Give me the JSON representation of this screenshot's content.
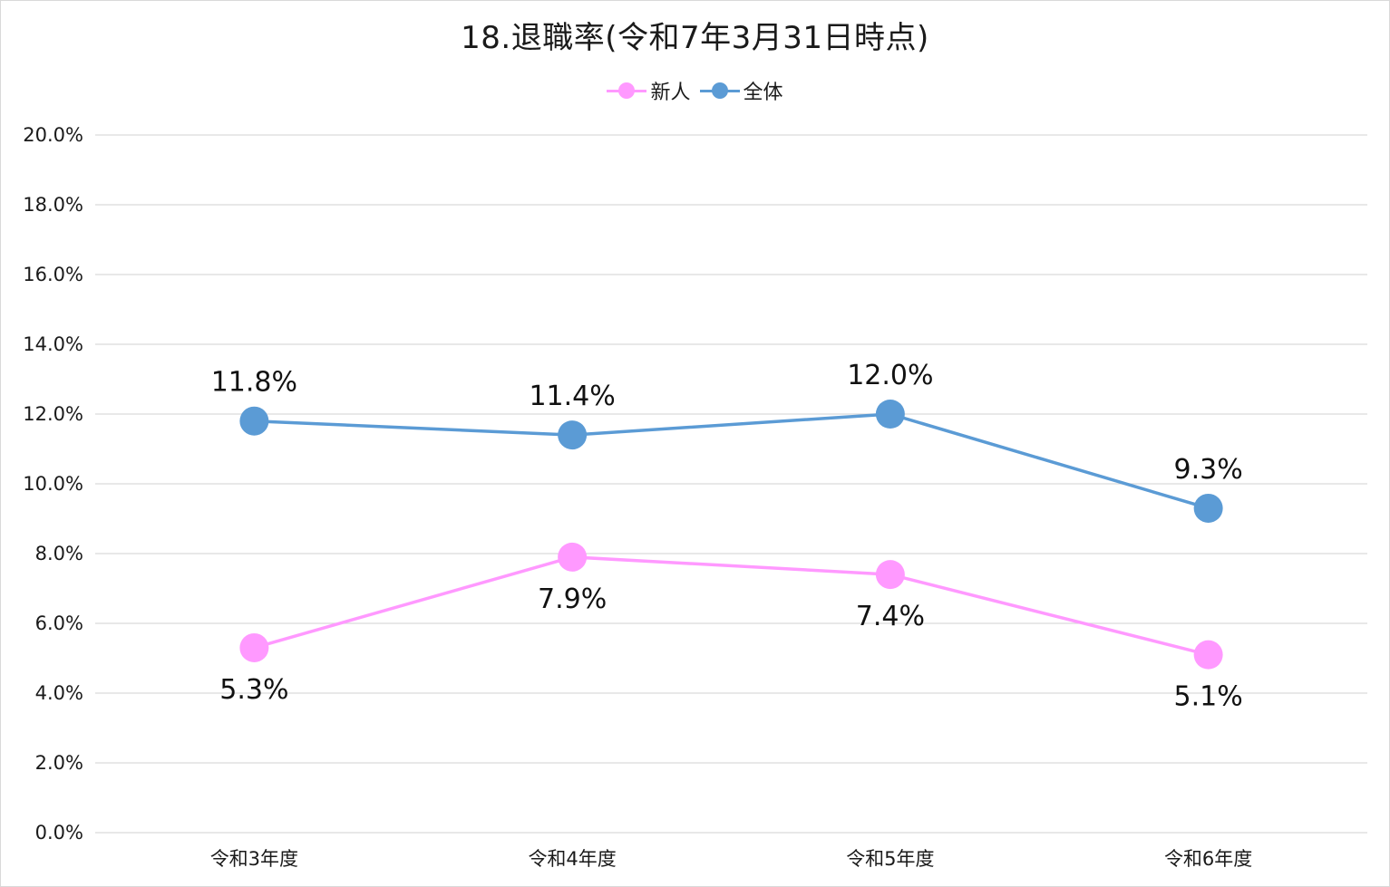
{
  "chart_data": {
    "type": "line",
    "title": "18.退職率(令和7年3月31日時点)",
    "categories": [
      "令和3年度",
      "令和4年度",
      "令和5年度",
      "令和6年度"
    ],
    "series": [
      {
        "name": "新人",
        "color": "#ff99ff",
        "values": [
          5.3,
          7.9,
          7.4,
          5.1
        ],
        "labels": [
          "5.3%",
          "7.9%",
          "7.4%",
          "5.1%"
        ],
        "label_position": "below"
      },
      {
        "name": "全体",
        "color": "#5b9bd5",
        "values": [
          11.8,
          11.4,
          12.0,
          9.3
        ],
        "labels": [
          "11.8%",
          "11.4%",
          "12.0%",
          "9.3%"
        ],
        "label_position": "above"
      }
    ],
    "ylim": [
      0,
      20
    ],
    "yticks": [
      "0.0%",
      "2.0%",
      "4.0%",
      "6.0%",
      "8.0%",
      "10.0%",
      "12.0%",
      "14.0%",
      "16.0%",
      "18.0%",
      "20.0%"
    ],
    "xlabel": "",
    "ylabel": "",
    "grid": true,
    "legend": "top-center"
  }
}
